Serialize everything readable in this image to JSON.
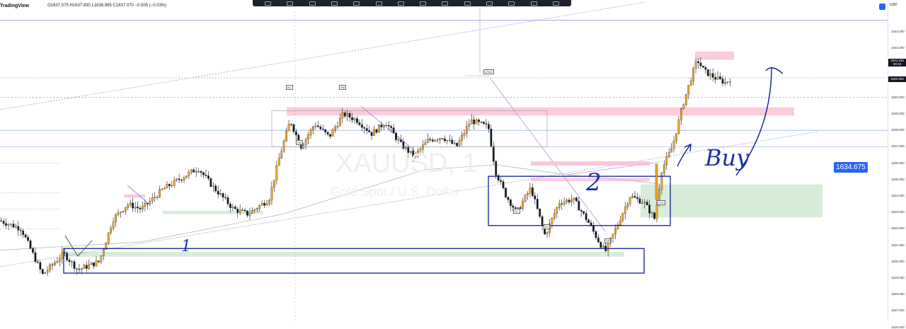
{
  "header": {
    "brand": "TradingView",
    "ohlc": "O1637.575 H1637.830 L1636.895 C1637.070 −0.505 (−0.03%)"
  },
  "watermark": {
    "symbol": "XAUUSD, 1",
    "description": "Gold Spot / U.S. Dollar"
  },
  "currency": "USD",
  "price_badge": "1634.675",
  "last_price": "1641.230",
  "countdown": "00:23",
  "marker_price": "1640.050",
  "annotations": {
    "zone1": "1",
    "zone2": "2",
    "buy": "Buy"
  },
  "level_labels": [
    "BC",
    "SM",
    "SM",
    "UTAD",
    "SC",
    "ST",
    "SP",
    "LPS"
  ],
  "colors": {
    "bull": "#f5a623",
    "bear": "#131722",
    "accent": "#2962ff",
    "supply": "#f8bbd0",
    "demand": "#c8e6c9",
    "box": "#0d1c96"
  },
  "chart_data": {
    "type": "candlestick",
    "title": "",
    "symbol": "XAUUSD",
    "interval": "1",
    "ylim": [
      1625.8,
      1644.8
    ],
    "y_ticks": [
      "1644.000",
      "1643.000",
      "1642.000",
      "1641.000",
      "1640.000",
      "1639.000",
      "1638.000",
      "1637.000",
      "1636.000",
      "1635.000",
      "1634.000",
      "1633.000",
      "1632.000",
      "1631.000",
      "1630.000",
      "1629.000",
      "1628.000",
      "1627.000",
      "1626.000"
    ],
    "price_path": [
      [
        0,
        1632.5
      ],
      [
        30,
        1632.0
      ],
      [
        60,
        1629.2
      ],
      [
        90,
        1630.5
      ],
      [
        110,
        1629.5
      ],
      [
        140,
        1630.0
      ],
      [
        160,
        1632.6
      ],
      [
        180,
        1633.5
      ],
      [
        200,
        1633.2
      ],
      [
        230,
        1634.4
      ],
      [
        260,
        1635.2
      ],
      [
        280,
        1635.7
      ],
      [
        300,
        1634.6
      ],
      [
        330,
        1633.2
      ],
      [
        350,
        1632.9
      ],
      [
        380,
        1633.8
      ],
      [
        395,
        1636.4
      ],
      [
        410,
        1638.6
      ],
      [
        425,
        1637.0
      ],
      [
        445,
        1638.4
      ],
      [
        465,
        1637.6
      ],
      [
        485,
        1639.0
      ],
      [
        505,
        1638.6
      ],
      [
        525,
        1637.8
      ],
      [
        545,
        1638.5
      ],
      [
        565,
        1637.2
      ],
      [
        585,
        1636.4
      ],
      [
        605,
        1637.4
      ],
      [
        625,
        1637.6
      ],
      [
        645,
        1637.0
      ],
      [
        665,
        1638.6
      ],
      [
        690,
        1638.2
      ],
      [
        700,
        1635.5
      ],
      [
        715,
        1634.0
      ],
      [
        730,
        1633.0
      ],
      [
        750,
        1634.5
      ],
      [
        770,
        1631.6
      ],
      [
        790,
        1633.6
      ],
      [
        810,
        1633.8
      ],
      [
        830,
        1632.5
      ],
      [
        845,
        1631.3
      ],
      [
        855,
        1630.6
      ],
      [
        870,
        1632.0
      ],
      [
        890,
        1634.0
      ],
      [
        910,
        1633.6
      ],
      [
        925,
        1632.6
      ],
      [
        935,
        1635.6
      ],
      [
        950,
        1637.0
      ],
      [
        965,
        1639.6
      ],
      [
        975,
        1641.0
      ],
      [
        985,
        1642.3
      ],
      [
        995,
        1641.6
      ],
      [
        1010,
        1641.2
      ],
      [
        1025,
        1640.9
      ],
      [
        1033,
        1641.2
      ]
    ],
    "candle_count": 300,
    "sma": [
      [
        0,
        1630.7
      ],
      [
        200,
        1631.2
      ],
      [
        400,
        1632.9
      ],
      [
        600,
        1635.6
      ],
      [
        700,
        1635.9
      ],
      [
        800,
        1635.3
      ],
      [
        900,
        1634.9
      ],
      [
        935,
        1634.7
      ]
    ],
    "resistance_zones": [
      [
        1638.9,
        1639.4
      ],
      [
        1642.3,
        1642.8
      ],
      [
        1634.9,
        1635.1
      ],
      [
        1633.9,
        1634.1
      ]
    ],
    "support_zones": [
      [
        1632.7,
        1634.7
      ],
      [
        1632.9,
        1633.1
      ],
      [
        1630.3,
        1630.6
      ]
    ],
    "boxes": [
      [
        1637.0,
        1639.2
      ],
      [
        1632.2,
        1635.2
      ],
      [
        1629.3,
        1630.8
      ]
    ],
    "horizontal_levels": [
      1644.7,
      1640.0,
      1638.0,
      1637.0,
      1641.2
    ]
  }
}
